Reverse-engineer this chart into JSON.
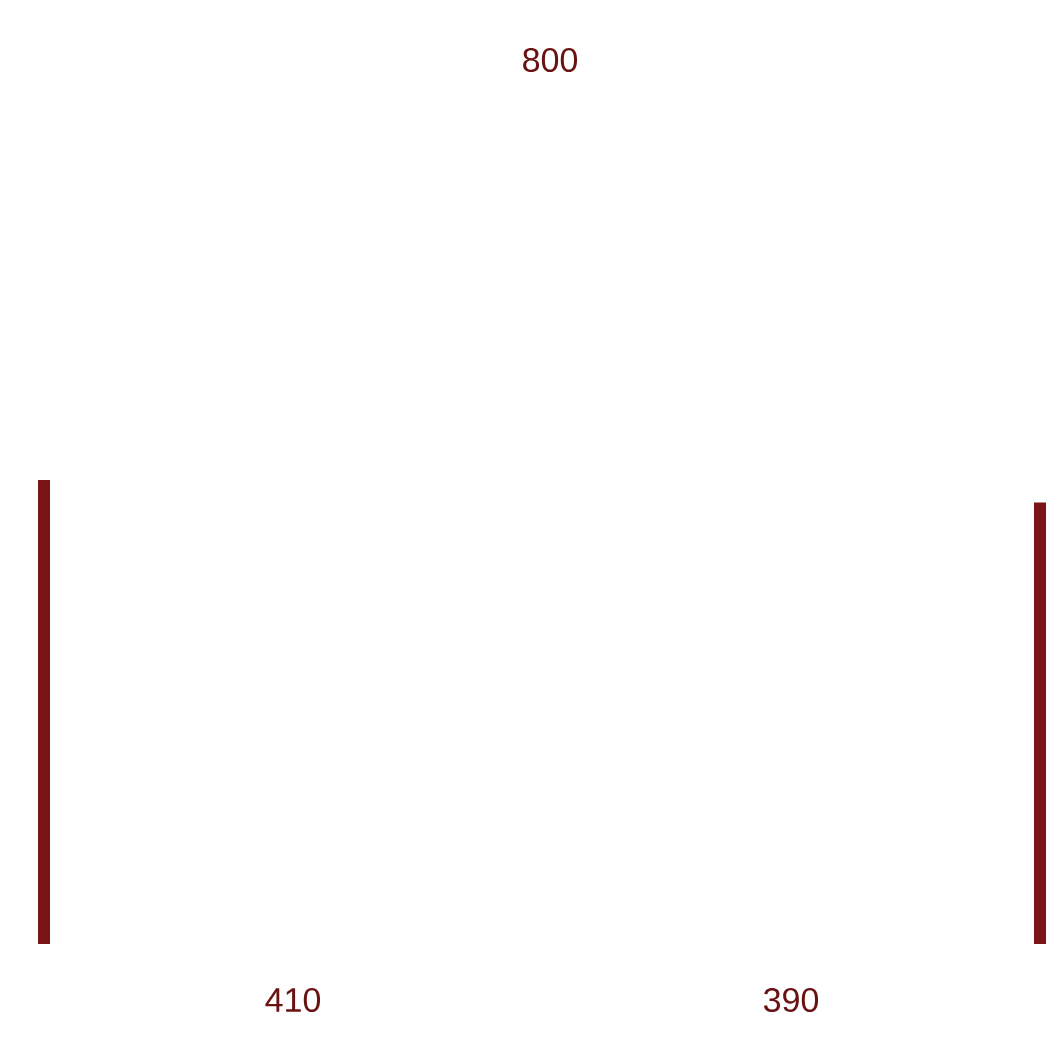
{
  "chart_data": {
    "type": "bar",
    "title": "800",
    "categories": [
      null,
      null
    ],
    "values": [
      410,
      390
    ],
    "color": "#7b1515",
    "data_labels": true
  }
}
